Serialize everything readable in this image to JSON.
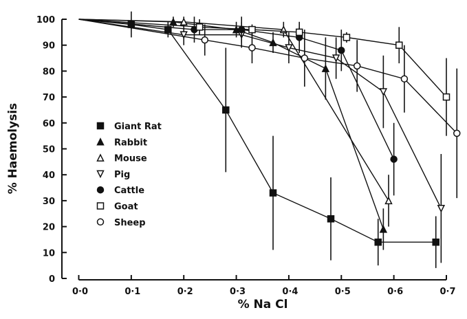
{
  "chart_data": {
    "type": "line",
    "title": "",
    "xlabel": "% Na Cl",
    "ylabel": "% Haemolysis",
    "xlim": [
      0,
      0.7
    ],
    "ylim": [
      0,
      100
    ],
    "xticks": [
      "0·0",
      "0·1",
      "0·2",
      "0·3",
      "0·4",
      "0·5",
      "0·6",
      "0·7"
    ],
    "yticks": [
      "0",
      "10",
      "20",
      "30",
      "40",
      "50",
      "60",
      "70",
      "80",
      "90",
      "100"
    ],
    "grid": false,
    "legend": "center-left",
    "series": [
      {
        "name": "Giant Rat",
        "marker": "filled-square",
        "x": [
          0,
          0.1,
          0.17,
          0.28,
          0.37,
          0.48,
          0.57,
          0.68
        ],
        "y": [
          100,
          98,
          96,
          65,
          33,
          23,
          14,
          14
        ],
        "err": [
          0,
          5,
          3,
          24,
          22,
          16,
          9,
          10
        ]
      },
      {
        "name": "Rabbit",
        "marker": "filled-triangle",
        "x": [
          0,
          0.18,
          0.3,
          0.37,
          0.47,
          0.58
        ],
        "y": [
          100,
          99,
          96,
          91,
          81,
          19
        ],
        "err": [
          0,
          2,
          3,
          4,
          12,
          8
        ]
      },
      {
        "name": "Mouse",
        "marker": "open-triangle",
        "x": [
          0,
          0.2,
          0.39,
          0.59
        ],
        "y": [
          100,
          99,
          96,
          30
        ],
        "err": [
          0,
          2,
          3,
          10
        ]
      },
      {
        "name": "Pig",
        "marker": "open-inverted-triangle",
        "x": [
          0,
          0.2,
          0.31,
          0.4,
          0.49,
          0.58,
          0.69
        ],
        "y": [
          100,
          94,
          94,
          89,
          85,
          72,
          27
        ],
        "err": [
          0,
          4,
          5,
          6,
          8,
          14,
          21
        ]
      },
      {
        "name": "Cattle",
        "marker": "filled-circle",
        "x": [
          0,
          0.22,
          0.31,
          0.42,
          0.5,
          0.6
        ],
        "y": [
          100,
          96,
          96,
          93,
          88,
          46
        ],
        "err": [
          0,
          5,
          5,
          6,
          8,
          14
        ]
      },
      {
        "name": "Goat",
        "marker": "open-square",
        "x": [
          0,
          0.23,
          0.33,
          0.42,
          0.51,
          0.61,
          0.7
        ],
        "y": [
          100,
          97,
          96,
          95,
          93,
          90,
          70
        ],
        "err": [
          0,
          3,
          2,
          2,
          2,
          7,
          15
        ]
      },
      {
        "name": "Sheep",
        "marker": "open-circle",
        "x": [
          0,
          0.24,
          0.33,
          0.43,
          0.53,
          0.62,
          0.72
        ],
        "y": [
          100,
          92,
          89,
          85,
          82,
          77,
          56
        ],
        "err": [
          0,
          6,
          6,
          11,
          10,
          13,
          25
        ]
      }
    ]
  }
}
